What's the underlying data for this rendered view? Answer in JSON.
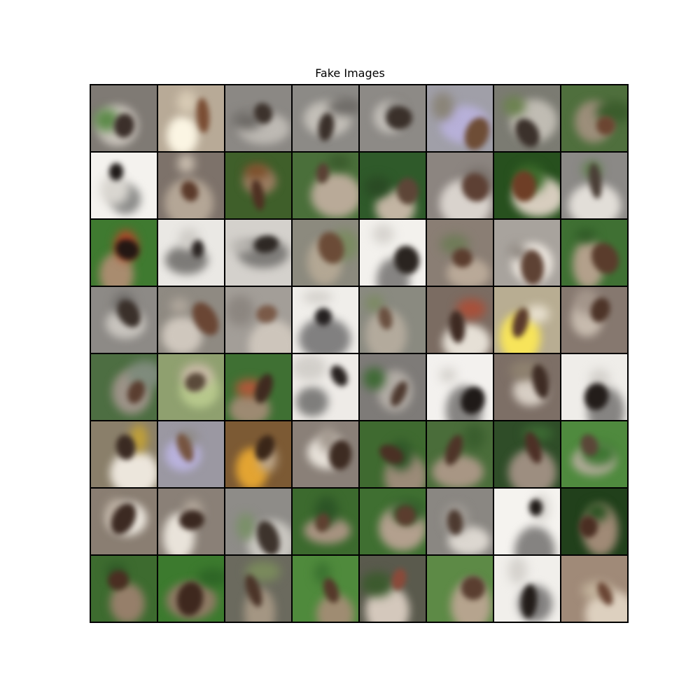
{
  "title": "Fake Images",
  "grid": {
    "rows": 8,
    "cols": 8,
    "tiles": [
      {
        "bg": "#7f7a74",
        "blob": "#c9c3bb",
        "blob2": "#3b2f2a",
        "accent": "#5d8a4a"
      },
      {
        "bg": "#b8aa97",
        "blob": "#fbf5e3",
        "blob2": "#7a4d33",
        "accent": "#d8cbb5"
      },
      {
        "bg": "#8b8884",
        "blob": "#bdb9b3",
        "blob2": "#3c322c",
        "accent": "#6d6a66"
      },
      {
        "bg": "#8c8a86",
        "blob": "#c3bfb8",
        "blob2": "#3a302a",
        "accent": "#6e6b67"
      },
      {
        "bg": "#8d8a86",
        "blob": "#c4c0ba",
        "blob2": "#3a302a",
        "accent": "#6f6c68"
      },
      {
        "bg": "#a09fa8",
        "blob": "#b7b0d8",
        "blob2": "#6e4d36",
        "accent": "#8a8478"
      },
      {
        "bg": "#7b7b72",
        "blob": "#c0bcb3",
        "blob2": "#3b312b",
        "accent": "#6c8250"
      },
      {
        "bg": "#4f6f3d",
        "blob": "#9c8e7a",
        "blob2": "#6b4531",
        "accent": "#3b5c2c"
      },
      {
        "bg": "#f4f2ee",
        "blob": "#8a8a88",
        "blob2": "#1f1a18",
        "accent": "#d9d6d0"
      },
      {
        "bg": "#7d726a",
        "blob": "#b4a696",
        "blob2": "#5b3a2a",
        "accent": "#cbbfb0"
      },
      {
        "bg": "#3f5f2a",
        "blob": "#9b7d62",
        "blob2": "#4e3022",
        "accent": "#7d4e2a"
      },
      {
        "bg": "#4a6f3a",
        "blob": "#b9aa98",
        "blob2": "#5a4034",
        "accent": "#3a5a2c"
      },
      {
        "bg": "#2f5a2a",
        "blob": "#c3b5a3",
        "blob2": "#5d4537",
        "accent": "#2a4a24"
      },
      {
        "bg": "#8c8580",
        "blob": "#d9d3cd",
        "blob2": "#5d4034",
        "accent": "#7a726c"
      },
      {
        "bg": "#27501e",
        "blob": "#d7cdbe",
        "blob2": "#6e3e26",
        "accent": "#3b6a2a"
      },
      {
        "bg": "#8b8986",
        "blob": "#e2ded8",
        "blob2": "#4a3e36",
        "accent": "#5f7f4c"
      },
      {
        "bg": "#3f7a30",
        "blob": "#a98c6f",
        "blob2": "#231713",
        "accent": "#b8452a"
      },
      {
        "bg": "#eae8e4",
        "blob": "#7d7b78",
        "blob2": "#2a2422",
        "accent": "#cfccc7"
      },
      {
        "bg": "#d4d1cc",
        "blob": "#7e7c79",
        "blob2": "#2e2824",
        "accent": "#b9b6b1"
      },
      {
        "bg": "#8c8a7e",
        "blob": "#b3a794",
        "blob2": "#6b4b37",
        "accent": "#7b8b62"
      },
      {
        "bg": "#f3f1ed",
        "blob": "#868482",
        "blob2": "#2a2420",
        "accent": "#d7d4cf"
      },
      {
        "bg": "#8a7e74",
        "blob": "#b9a998",
        "blob2": "#5b3d2e",
        "accent": "#6f7b58"
      },
      {
        "bg": "#a8a39d",
        "blob": "#ece6de",
        "blob2": "#5e4234",
        "accent": "#8b847d"
      },
      {
        "bg": "#3f7033",
        "blob": "#b3a08b",
        "blob2": "#5a3c2c",
        "accent": "#2f5a26"
      },
      {
        "bg": "#8d8a86",
        "blob": "#c8c4be",
        "blob2": "#3a302a",
        "accent": "#6c6966"
      },
      {
        "bg": "#8f8a82",
        "blob": "#cfc7bd",
        "blob2": "#6a4634",
        "accent": "#b0a79c"
      },
      {
        "bg": "#a39e98",
        "blob": "#cdc5bb",
        "blob2": "#7a5a48",
        "accent": "#8c8680"
      },
      {
        "bg": "#f0eeea",
        "blob": "#818080",
        "blob2": "#242020",
        "accent": "#d4d1cc"
      },
      {
        "bg": "#8a8a80",
        "blob": "#b3aa9c",
        "blob2": "#6a5040",
        "accent": "#7c8a62"
      },
      {
        "bg": "#7b6c62",
        "blob": "#e6e0d6",
        "blob2": "#3e2a22",
        "accent": "#a8503a"
      },
      {
        "bg": "#b8ad92",
        "blob": "#f7e45a",
        "blob2": "#5a3a2c",
        "accent": "#e8e0cf"
      },
      {
        "bg": "#86786f",
        "blob": "#c7bbae",
        "blob2": "#4d3428",
        "accent": "#a3958a"
      },
      {
        "bg": "#4d6e42",
        "blob": "#9d9388",
        "blob2": "#5a3e30",
        "accent": "#7f8b7c"
      },
      {
        "bg": "#8fa06f",
        "blob": "#b7c88c",
        "blob2": "#5a4a3a",
        "accent": "#c8b9a6"
      },
      {
        "bg": "#3f7033",
        "blob": "#9d8a72",
        "blob2": "#3f2a20",
        "accent": "#b0583a"
      },
      {
        "bg": "#eeebe7",
        "blob": "#7f7e7c",
        "blob2": "#282220",
        "accent": "#d2cfca"
      },
      {
        "bg": "#7e7b78",
        "blob": "#b2aca5",
        "blob2": "#4e3a30",
        "accent": "#3f6a35"
      },
      {
        "bg": "#f3f1ee",
        "blob": "#868482",
        "blob2": "#1f1a18",
        "accent": "#d6d3ce"
      },
      {
        "bg": "#7d6f66",
        "blob": "#d7cec4",
        "blob2": "#3e2c24",
        "accent": "#8e816f"
      },
      {
        "bg": "#efede9",
        "blob": "#868482",
        "blob2": "#231d1a",
        "accent": "#d3d0cb"
      },
      {
        "bg": "#8a7f6a",
        "blob": "#ece6dc",
        "blob2": "#3a2a22",
        "accent": "#c0a038"
      },
      {
        "bg": "#9b98a2",
        "blob": "#b9b2dc",
        "blob2": "#765440",
        "accent": "#8c8880"
      },
      {
        "bg": "#7c5a34",
        "blob": "#e3a432",
        "blob2": "#3a2618",
        "accent": "#bda88e"
      },
      {
        "bg": "#8a8078",
        "blob": "#e8e2da",
        "blob2": "#3d2b22",
        "accent": "#a49a90"
      },
      {
        "bg": "#3f6a30",
        "blob": "#9b8b78",
        "blob2": "#4a3024",
        "accent": "#2f5628"
      },
      {
        "bg": "#4a6d3a",
        "blob": "#a89684",
        "blob2": "#4e3428",
        "accent": "#3a5e2e"
      },
      {
        "bg": "#2f4d28",
        "blob": "#9d8e80",
        "blob2": "#4d3026",
        "accent": "#3c6a33"
      },
      {
        "bg": "#4f8a3e",
        "blob": "#b5ad9c",
        "blob2": "#5a4638",
        "accent": "#3f7633"
      },
      {
        "bg": "#8a7e72",
        "blob": "#ebe6dd",
        "blob2": "#3c2a22",
        "accent": "#b6a99b"
      },
      {
        "bg": "#8a8077",
        "blob": "#e9e3da",
        "blob2": "#3a2820",
        "accent": "#b4a89c"
      },
      {
        "bg": "#8e8c88",
        "blob": "#c9c6c0",
        "blob2": "#3d332c",
        "accent": "#7a9068"
      },
      {
        "bg": "#3c6a2e",
        "blob": "#a99482",
        "blob2": "#5e4030",
        "accent": "#2c5426"
      },
      {
        "bg": "#3f6f31",
        "blob": "#b3a08e",
        "blob2": "#5b3d2e",
        "accent": "#2e5a27"
      },
      {
        "bg": "#8a8782",
        "blob": "#dcd7d0",
        "blob2": "#4d3a30",
        "accent": "#a39e98"
      },
      {
        "bg": "#f5f3ef",
        "blob": "#858381",
        "blob2": "#201b18",
        "accent": "#d8d5d0"
      },
      {
        "bg": "#21401b",
        "blob": "#a08a76",
        "blob2": "#4a2e22",
        "accent": "#2b5222"
      },
      {
        "bg": "#3d6b2f",
        "blob": "#967f6a",
        "blob2": "#4a2e22",
        "accent": "#2f5927"
      },
      {
        "bg": "#3c7a2e",
        "blob": "#8e7a64",
        "blob2": "#3e281e",
        "accent": "#2e6526"
      },
      {
        "bg": "#6b6a5e",
        "blob": "#a49683",
        "blob2": "#4b3428",
        "accent": "#7a8a5c"
      },
      {
        "bg": "#4f8a3c",
        "blob": "#9f8c72",
        "blob2": "#55382a",
        "accent": "#3b7230"
      },
      {
        "bg": "#5a5a4d",
        "blob": "#d4c8bc",
        "blob2": "#8a4a3a",
        "accent": "#3c5a2e"
      },
      {
        "bg": "#5d8a46",
        "blob": "#b6a48e",
        "blob2": "#5a3e30",
        "accent": "#8a8a7a"
      },
      {
        "bg": "#f1efeb",
        "blob": "#838180",
        "blob2": "#221c19",
        "accent": "#d5d2cd"
      },
      {
        "bg": "#a08a78",
        "blob": "#ddd0bf",
        "blob2": "#6a4534",
        "accent": "#c3b39c"
      }
    ]
  }
}
